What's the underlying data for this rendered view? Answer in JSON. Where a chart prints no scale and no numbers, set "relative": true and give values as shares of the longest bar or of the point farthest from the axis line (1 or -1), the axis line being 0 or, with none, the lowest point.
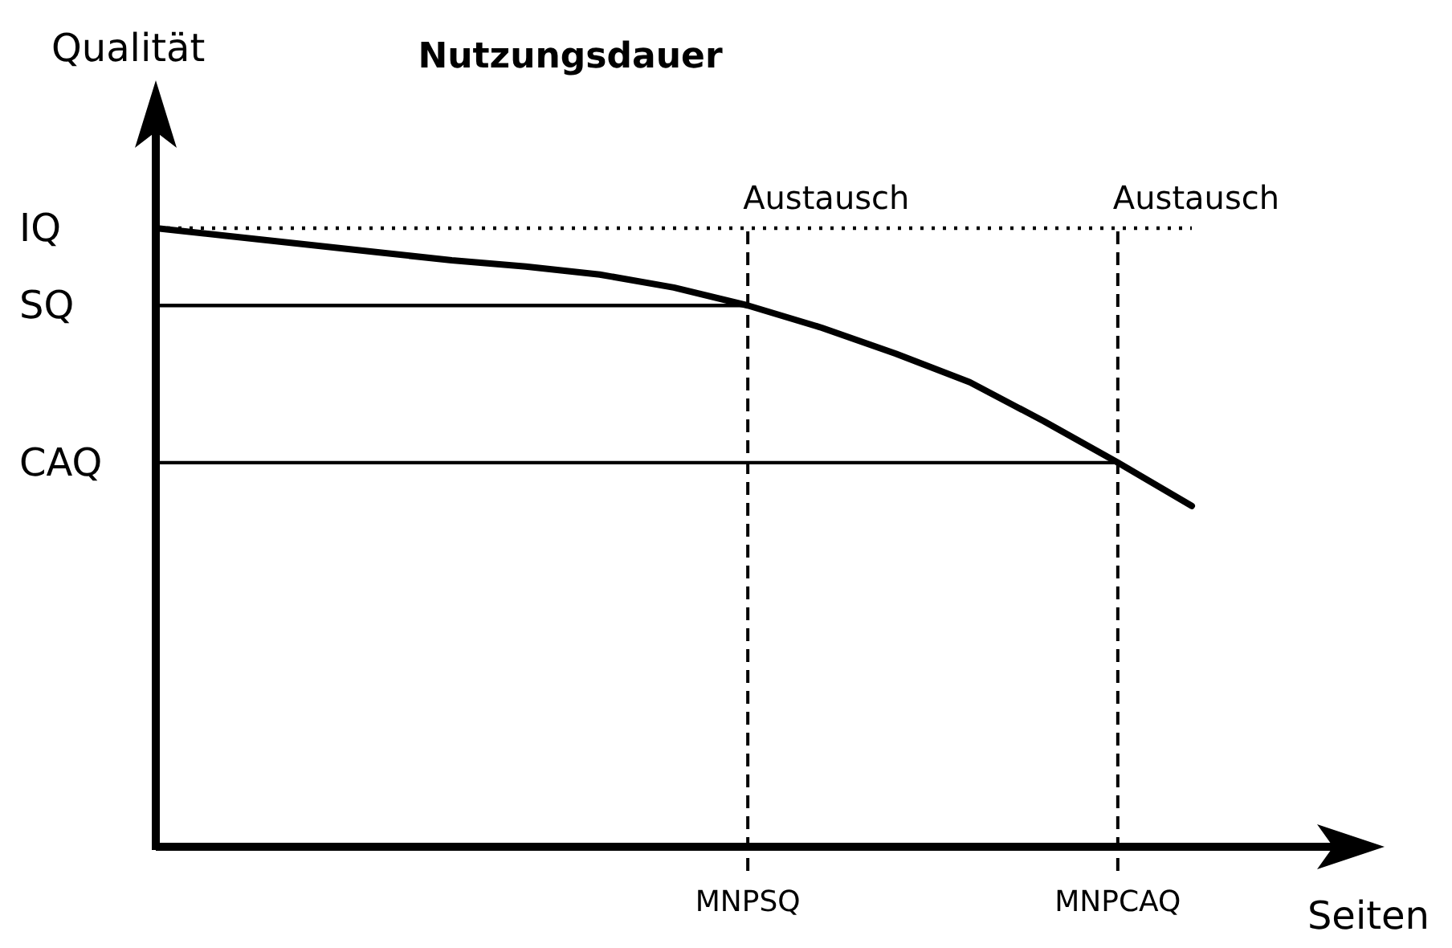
{
  "chart_data": {
    "type": "line",
    "title": "Nutzungsdauer",
    "xlabel": "Seiten",
    "ylabel": "Qualität",
    "relative": true,
    "categories": [
      null,
      null,
      null,
      null,
      null,
      null,
      null,
      null,
      "MNPSQ",
      null,
      null,
      null,
      null,
      "MNPCAQ",
      null
    ],
    "values": [
      1,
      0.987,
      0.974,
      0.961,
      0.948,
      0.938,
      0.925,
      0.904,
      0.875,
      0.839,
      0.797,
      0.751,
      0.688,
      0.621,
      0.551
    ],
    "color": "#000000",
    "ref_lines": [
      {
        "axis": "y",
        "value": 1,
        "label": "IQ",
        "line_style": "dotted"
      },
      {
        "axis": "y",
        "value": 0.875,
        "label": "SQ",
        "line_style": "solid"
      },
      {
        "axis": "y",
        "value": 0.621,
        "label": "CAQ",
        "line_style": "solid"
      },
      {
        "axis": "x",
        "value": "MNPSQ",
        "line_style": "dashed"
      },
      {
        "axis": "x",
        "value": "MNPCAQ",
        "line_style": "dashed"
      }
    ],
    "annotations": [
      {
        "text": "Austausch",
        "x": "MNPSQ",
        "y": 1
      },
      {
        "text": "Austausch",
        "x": "MNPCAQ",
        "y": 1
      }
    ]
  }
}
